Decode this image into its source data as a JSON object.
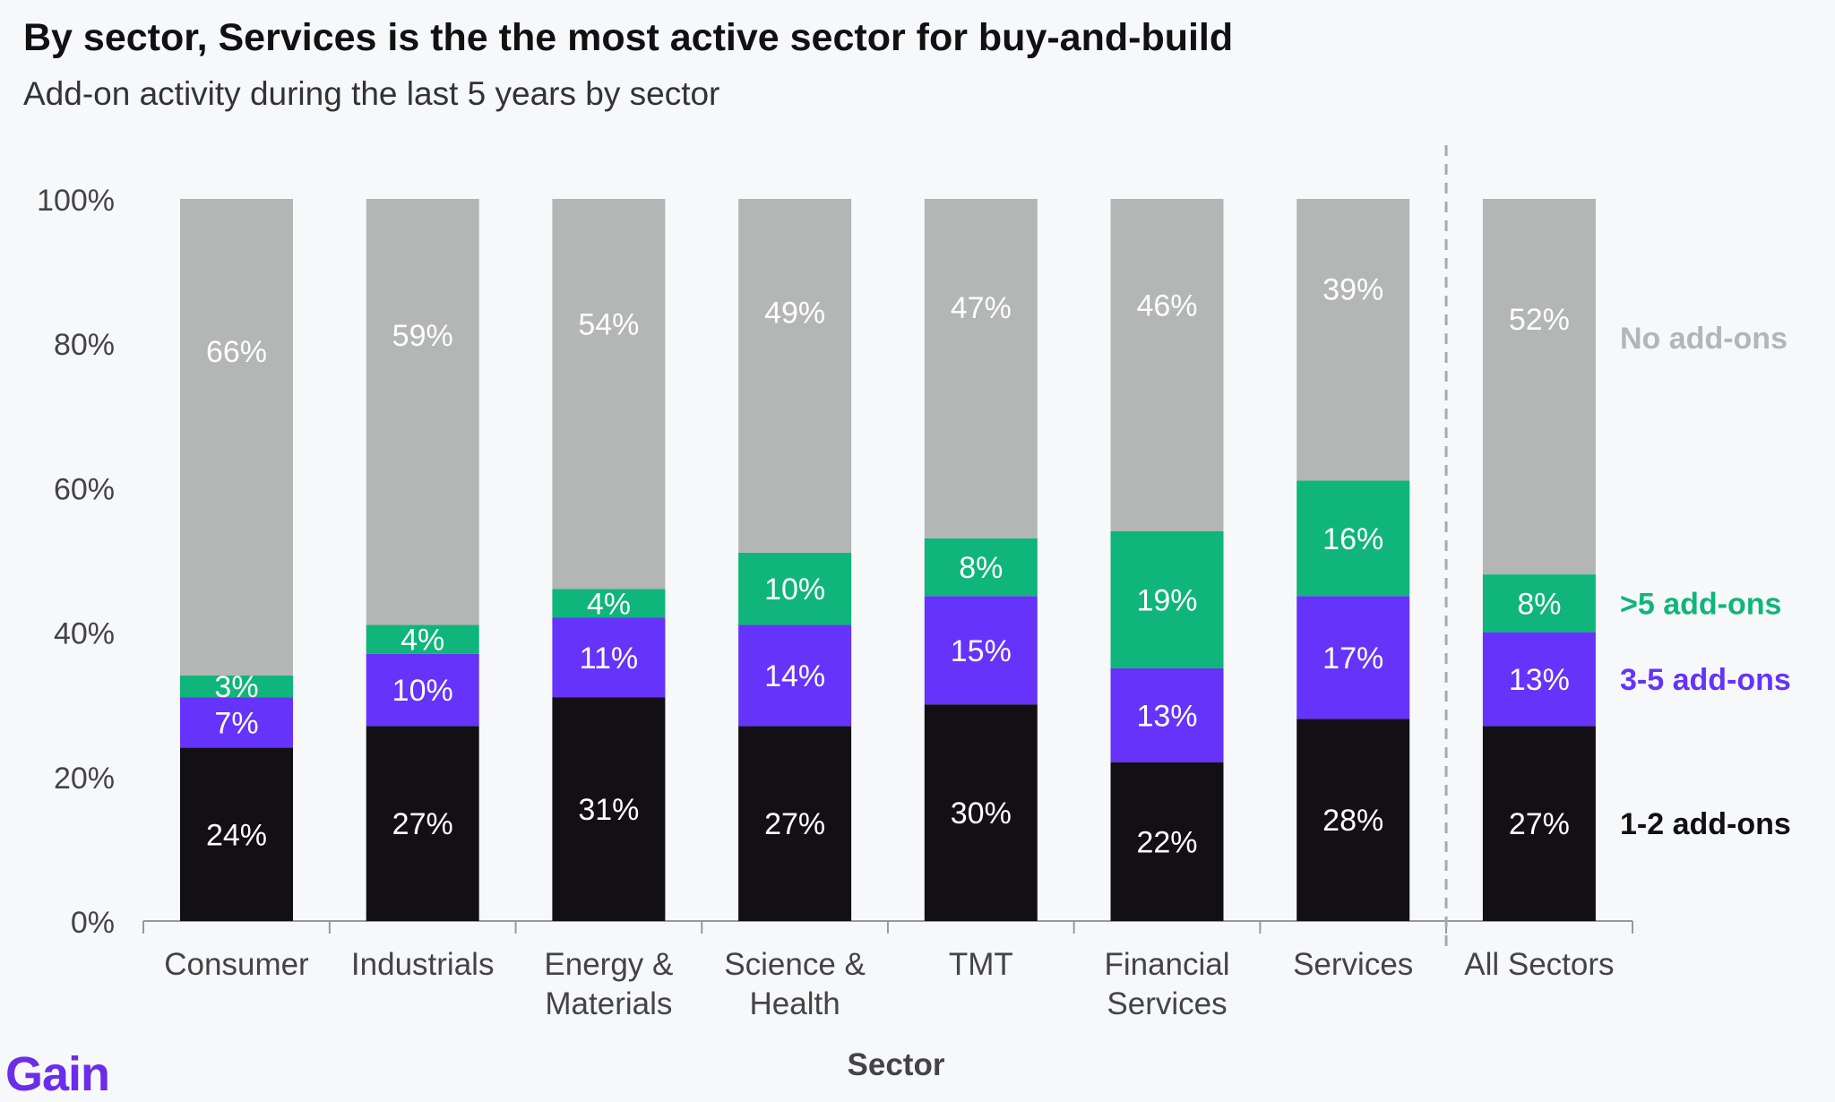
{
  "header": {
    "title": "By sector, Services is the the most active sector for buy-and-build",
    "subtitle": "Add-on activity during the last 5 years by sector"
  },
  "brand": {
    "logo_text": "Gain"
  },
  "chart_data": {
    "type": "bar",
    "stacked": true,
    "categories": [
      [
        "Consumer"
      ],
      [
        "Industrials"
      ],
      [
        "Energy &",
        "Materials"
      ],
      [
        "Science &",
        "Health"
      ],
      [
        "TMT"
      ],
      [
        "Financial",
        "Services"
      ],
      [
        "Services"
      ],
      [
        "All Sectors"
      ]
    ],
    "series": [
      {
        "name": "1-2 add-ons",
        "color": "#131015",
        "label_color": "#ffffff",
        "values": [
          24,
          27,
          31,
          27,
          30,
          22,
          28,
          27
        ]
      },
      {
        "name": "3-5 add-ons",
        "color": "#6533fa",
        "label_color": "#ffffff",
        "values": [
          7,
          10,
          11,
          14,
          15,
          13,
          17,
          13
        ]
      },
      {
        "name": ">5 add-ons",
        "color": "#0fb57a",
        "label_color": "#ffffff",
        "values": [
          3,
          4,
          4,
          10,
          8,
          19,
          16,
          8
        ]
      },
      {
        "name": "No add-ons",
        "color": "#b4b5b5",
        "label_color": "#ffffff",
        "values": [
          66,
          59,
          54,
          49,
          47,
          46,
          39,
          52
        ]
      }
    ],
    "legend_colors": [
      "#111111",
      "#6533fa",
      "#0fb57a",
      "#b4b5b5"
    ],
    "legend_placement": "right",
    "xlabel": "Sector",
    "ylabel": "",
    "ylim": [
      0,
      100
    ],
    "yticks": [
      "0%",
      "20%",
      "40%",
      "60%",
      "80%",
      "100%"
    ],
    "separator_before_category": 7,
    "grid": false
  }
}
